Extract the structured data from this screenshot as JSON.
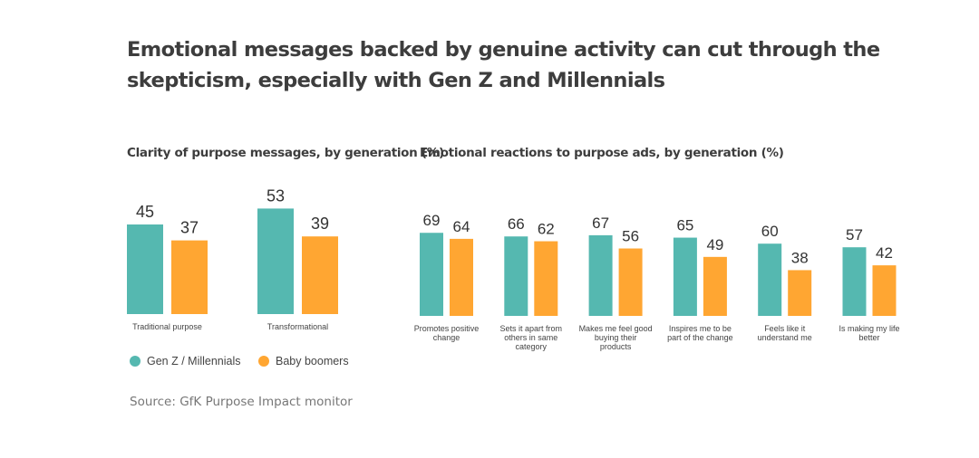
{
  "title": "Emotional messages backed by genuine activity can cut through the skepticism, especially with Gen Z and Millennials",
  "source": "Source: GfK Purpose Impact monitor",
  "colors": {
    "gen_z": "#55b8b0",
    "boomers": "#ffa632"
  },
  "legend": [
    {
      "name": "Gen Z / Millennials",
      "color": "#55b8b0"
    },
    {
      "name": "Baby boomers",
      "color": "#ffa632"
    }
  ],
  "chart_data": [
    {
      "type": "bar",
      "title": "Clarity of purpose messages, by generation (%)",
      "categories": [
        "Traditional purpose",
        "Transformational"
      ],
      "series": [
        {
          "name": "Gen Z / Millennials",
          "values": [
            45,
            53
          ]
        },
        {
          "name": "Baby boomers",
          "values": [
            37,
            39
          ]
        }
      ],
      "grid": false,
      "legend_position": "bottom-left"
    },
    {
      "type": "bar",
      "title": "Emotional reactions to purpose ads, by generation (%)",
      "categories": [
        "Promotes positive change",
        "Sets it apart from others in same category",
        "Makes me feel good buying their products",
        "Inspires me to be part of the change",
        "Feels like it understand me",
        "Is making my life better"
      ],
      "series": [
        {
          "name": "Gen Z / Millennials",
          "values": [
            69,
            66,
            67,
            65,
            60,
            57
          ]
        },
        {
          "name": "Baby boomers",
          "values": [
            64,
            62,
            56,
            49,
            38,
            42
          ]
        }
      ],
      "grid": false
    }
  ]
}
